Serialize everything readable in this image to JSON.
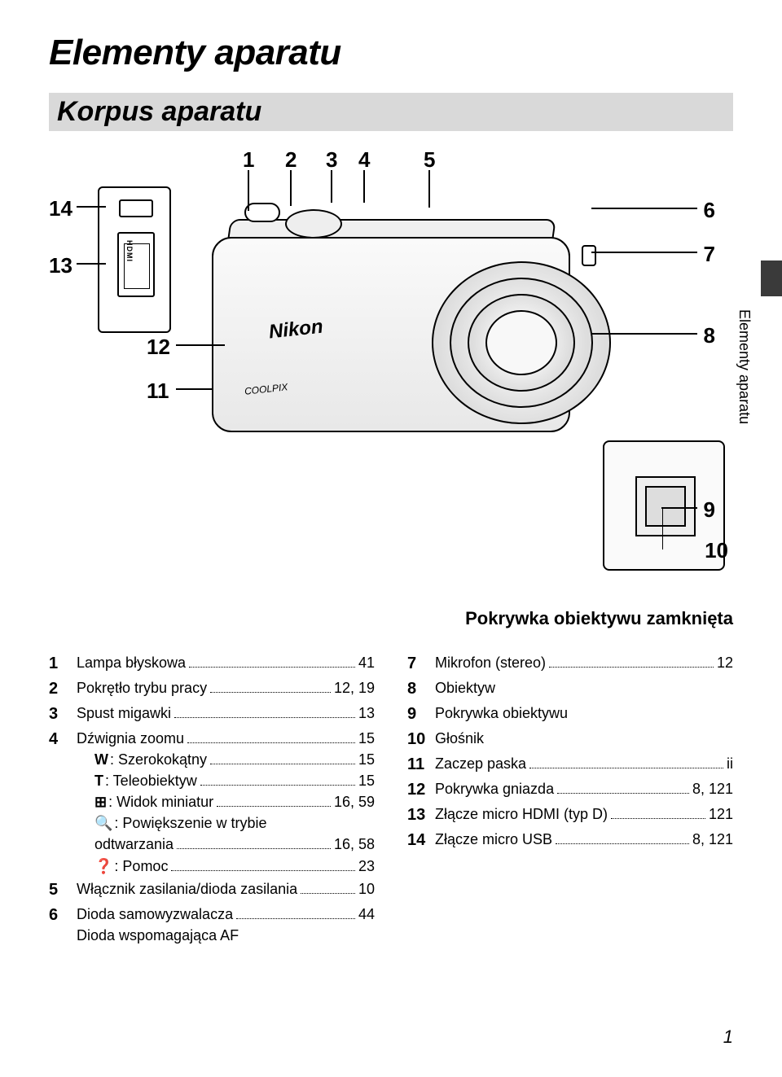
{
  "page_number": "1",
  "title": "Elementy aparatu",
  "subtitle": "Korpus aparatu",
  "side_tab": "Elementy aparatu",
  "diagram_caption": "Pokrywka obiektywu zamknięta",
  "brand": "Nikon",
  "model": "COOLPIX",
  "callouts": {
    "c1": "1",
    "c2": "2",
    "c3": "3",
    "c4": "4",
    "c5": "5",
    "c6": "6",
    "c7": "7",
    "c8": "8",
    "c9": "9",
    "c10": "10",
    "c11": "11",
    "c12": "12",
    "c13": "13",
    "c14": "14"
  },
  "left": [
    {
      "n": "1",
      "lines": [
        {
          "label": "Lampa błyskowa",
          "page": "41"
        }
      ]
    },
    {
      "n": "2",
      "lines": [
        {
          "label": "Pokrętło trybu pracy",
          "page": "12, 19"
        }
      ]
    },
    {
      "n": "3",
      "lines": [
        {
          "label": "Spust migawki",
          "page": "13"
        }
      ]
    },
    {
      "n": "4",
      "lines": [
        {
          "label": "Dźwignia zoomu",
          "page": "15"
        },
        {
          "sym": "W",
          "label": ": Szerokokątny",
          "page": "15",
          "sub": true
        },
        {
          "sym": "T",
          "label": ": Teleobiektyw",
          "page": "15",
          "sub": true
        },
        {
          "sym": "⊞",
          "label": ": Widok miniatur",
          "page": "16, 59",
          "sub": true
        },
        {
          "sym": "🔍",
          "label": ": Powiększenie w trybie odtwarzania",
          "page": "16, 58",
          "sub": true,
          "wrap": true
        },
        {
          "sym": "❓",
          "label": ": Pomoc",
          "page": "23",
          "sub": true
        }
      ]
    },
    {
      "n": "5",
      "lines": [
        {
          "label": "Włącznik zasilania/dioda zasilania",
          "page": "10"
        }
      ]
    },
    {
      "n": "6",
      "lines": [
        {
          "label": "Dioda samowyzwalacza",
          "page": "44"
        },
        {
          "label": "Dioda wspomagająca AF",
          "nopage": true
        }
      ]
    }
  ],
  "right": [
    {
      "n": "7",
      "lines": [
        {
          "label": "Mikrofon (stereo)",
          "page": "12"
        }
      ]
    },
    {
      "n": "8",
      "lines": [
        {
          "label": "Obiektyw",
          "nopage": true
        }
      ]
    },
    {
      "n": "9",
      "lines": [
        {
          "label": "Pokrywka obiektywu",
          "nopage": true
        }
      ]
    },
    {
      "n": "10",
      "lines": [
        {
          "label": "Głośnik",
          "nopage": true
        }
      ]
    },
    {
      "n": "11",
      "lines": [
        {
          "label": "Zaczep paska",
          "page": "ii"
        }
      ]
    },
    {
      "n": "12",
      "lines": [
        {
          "label": "Pokrywka gniazda",
          "page": "8, 121"
        }
      ]
    },
    {
      "n": "13",
      "lines": [
        {
          "label": "Złącze micro HDMI (typ D)",
          "page": "121"
        }
      ]
    },
    {
      "n": "14",
      "lines": [
        {
          "label": "Złącze micro USB",
          "page": "8, 121"
        }
      ]
    }
  ]
}
